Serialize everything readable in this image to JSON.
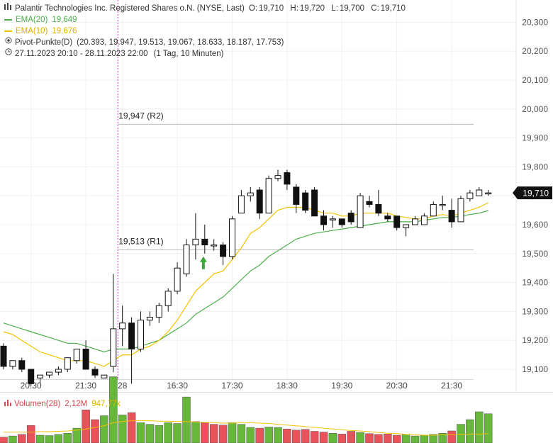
{
  "legend": {
    "instrument": "Palantir Technologies Inc. Registered Shares o.N. (NYSE, Last)",
    "ohlc": [
      {
        "label": "O:",
        "value": "19,710"
      },
      {
        "label": "H:",
        "value": "19,720"
      },
      {
        "label": "L:",
        "value": "19,700"
      },
      {
        "label": "C:",
        "value": "19,710"
      }
    ],
    "ema20_label": "EMA(20)",
    "ema20_value": "19,649",
    "ema10_label": "EMA(10)",
    "ema10_value": "19,676",
    "pivot_label": "Pivot-Punkte(D)",
    "pivot_values": "(20.393,  19.947,  19.513,  19.067,  18.633,  18.187,  17.753)",
    "range": "27.11.2023 20:10 - 28.11.2023 22:00",
    "interval": "(1 Tag, 10 Minuten)",
    "icons": {
      "chart": "chart-bars-icon",
      "pivot": "target-icon",
      "clock": "clock-icon"
    }
  },
  "volume_legend": {
    "label": "Volumen(28)",
    "value": "2,12M",
    "avg": "947,77k",
    "icon": "volume-bars-icon"
  },
  "colors": {
    "ema20": "#4cae4c",
    "ema10": "#f2c200",
    "up_vol": "#67b83a",
    "down_vol": "#e8525a",
    "price_tag": "#111111",
    "session_line": "#cc44cc",
    "arrow": "#3aa83a"
  },
  "chart_data": {
    "type": "candlestick",
    "y_ticks": [
      "19,100",
      "19,200",
      "19,300",
      "19,400",
      "19,500",
      "19,600",
      "19,700",
      "19,800",
      "19,900",
      "20,000",
      "20,100",
      "20,200",
      "20,300"
    ],
    "x_ticks": [
      {
        "label": "20:30",
        "index": 3
      },
      {
        "label": "21:30",
        "index": 9
      },
      {
        "label": "28",
        "index": 13
      },
      {
        "label": "16:30",
        "index": 19
      },
      {
        "label": "17:30",
        "index": 25
      },
      {
        "label": "18:30",
        "index": 31
      },
      {
        "label": "19:30",
        "index": 37
      },
      {
        "label": "20:30",
        "index": 43
      },
      {
        "label": "21:30",
        "index": 49
      }
    ],
    "session_break_index": 12.5,
    "current_price": "19,710",
    "current_value": 19.71,
    "pivots": [
      {
        "label": "19,947 (R2)",
        "value": 19.947
      },
      {
        "label": "19,513 (R1)",
        "value": 19.513
      }
    ],
    "arrow_index": 22,
    "candles": [
      {
        "o": 19.18,
        "h": 19.19,
        "l": 19.1,
        "c": 19.11
      },
      {
        "o": 19.11,
        "h": 19.13,
        "l": 19.1,
        "c": 19.13
      },
      {
        "o": 19.13,
        "h": 19.14,
        "l": 19.09,
        "c": 19.1
      },
      {
        "o": 19.1,
        "h": 19.1,
        "l": 19.04,
        "c": 19.05
      },
      {
        "o": 19.07,
        "h": 19.08,
        "l": 19.05,
        "c": 19.08
      },
      {
        "o": 19.08,
        "h": 19.09,
        "l": 19.07,
        "c": 19.09
      },
      {
        "o": 19.09,
        "h": 19.11,
        "l": 19.08,
        "c": 19.1
      },
      {
        "o": 19.1,
        "h": 19.14,
        "l": 19.09,
        "c": 19.14
      },
      {
        "o": 19.13,
        "h": 19.17,
        "l": 19.12,
        "c": 19.17
      },
      {
        "o": 19.17,
        "h": 19.2,
        "l": 19.1,
        "c": 19.1
      },
      {
        "o": 19.1,
        "h": 19.11,
        "l": 19.07,
        "c": 19.08
      },
      {
        "o": 19.07,
        "h": 19.08,
        "l": 19.07,
        "c": 19.08
      },
      {
        "o": 19.11,
        "h": 19.43,
        "l": 19.09,
        "c": 19.24
      },
      {
        "o": 19.24,
        "h": 19.32,
        "l": 19.18,
        "c": 19.26
      },
      {
        "o": 19.26,
        "h": 19.28,
        "l": 19.05,
        "c": 19.17
      },
      {
        "o": 19.17,
        "h": 19.3,
        "l": 19.16,
        "c": 19.27
      },
      {
        "o": 19.27,
        "h": 19.3,
        "l": 19.25,
        "c": 19.28
      },
      {
        "o": 19.28,
        "h": 19.33,
        "l": 19.26,
        "c": 19.32
      },
      {
        "o": 19.32,
        "h": 19.38,
        "l": 19.3,
        "c": 19.37
      },
      {
        "o": 19.37,
        "h": 19.47,
        "l": 19.36,
        "c": 19.45
      },
      {
        "o": 19.43,
        "h": 19.55,
        "l": 19.42,
        "c": 19.53
      },
      {
        "o": 19.53,
        "h": 19.64,
        "l": 19.48,
        "c": 19.55
      },
      {
        "o": 19.55,
        "h": 19.6,
        "l": 19.5,
        "c": 19.53
      },
      {
        "o": 19.53,
        "h": 19.55,
        "l": 19.51,
        "c": 19.53
      },
      {
        "o": 19.53,
        "h": 19.54,
        "l": 19.46,
        "c": 19.49
      },
      {
        "o": 19.49,
        "h": 19.63,
        "l": 19.48,
        "c": 19.62
      },
      {
        "o": 19.64,
        "h": 19.72,
        "l": 19.64,
        "c": 19.7
      },
      {
        "o": 19.7,
        "h": 19.73,
        "l": 19.68,
        "c": 19.71
      },
      {
        "o": 19.72,
        "h": 19.73,
        "l": 19.62,
        "c": 19.64
      },
      {
        "o": 19.64,
        "h": 19.77,
        "l": 19.64,
        "c": 19.76
      },
      {
        "o": 19.76,
        "h": 19.79,
        "l": 19.75,
        "c": 19.77
      },
      {
        "o": 19.78,
        "h": 19.79,
        "l": 19.72,
        "c": 19.74
      },
      {
        "o": 19.73,
        "h": 19.74,
        "l": 19.64,
        "c": 19.67
      },
      {
        "o": 19.71,
        "h": 19.72,
        "l": 19.64,
        "c": 19.65
      },
      {
        "o": 19.72,
        "h": 19.73,
        "l": 19.63,
        "c": 19.63
      },
      {
        "o": 19.63,
        "h": 19.65,
        "l": 19.58,
        "c": 19.6
      },
      {
        "o": 19.62,
        "h": 19.63,
        "l": 19.59,
        "c": 19.62
      },
      {
        "o": 19.62,
        "h": 19.62,
        "l": 19.59,
        "c": 19.6
      },
      {
        "o": 19.64,
        "h": 19.65,
        "l": 19.6,
        "c": 19.61
      },
      {
        "o": 19.59,
        "h": 19.71,
        "l": 19.59,
        "c": 19.7
      },
      {
        "o": 19.68,
        "h": 19.7,
        "l": 19.66,
        "c": 19.67
      },
      {
        "o": 19.67,
        "h": 19.72,
        "l": 19.63,
        "c": 19.64
      },
      {
        "o": 19.63,
        "h": 19.64,
        "l": 19.61,
        "c": 19.62
      },
      {
        "o": 19.63,
        "h": 19.63,
        "l": 19.58,
        "c": 19.59
      },
      {
        "o": 19.59,
        "h": 19.6,
        "l": 19.56,
        "c": 19.6
      },
      {
        "o": 19.6,
        "h": 19.63,
        "l": 19.6,
        "c": 19.62
      },
      {
        "o": 19.6,
        "h": 19.64,
        "l": 19.6,
        "c": 19.63
      },
      {
        "o": 19.63,
        "h": 19.68,
        "l": 19.63,
        "c": 19.67
      },
      {
        "o": 19.67,
        "h": 19.7,
        "l": 19.65,
        "c": 19.67
      },
      {
        "o": 19.65,
        "h": 19.69,
        "l": 19.59,
        "c": 19.61
      },
      {
        "o": 19.61,
        "h": 19.7,
        "l": 19.61,
        "c": 19.69
      },
      {
        "o": 19.69,
        "h": 19.72,
        "l": 19.68,
        "c": 19.71
      },
      {
        "o": 19.7,
        "h": 19.73,
        "l": 19.7,
        "c": 19.72
      },
      {
        "o": 19.71,
        "h": 19.72,
        "l": 19.7,
        "c": 19.71
      }
    ],
    "ema20": [
      19.26,
      19.25,
      19.24,
      19.23,
      19.22,
      19.21,
      19.2,
      19.19,
      19.19,
      19.18,
      19.17,
      19.16,
      19.17,
      19.17,
      19.17,
      19.18,
      19.19,
      19.2,
      19.22,
      19.24,
      19.26,
      19.29,
      19.31,
      19.33,
      19.35,
      19.38,
      19.41,
      19.44,
      19.46,
      19.49,
      19.51,
      19.53,
      19.55,
      19.56,
      19.57,
      19.575,
      19.58,
      19.585,
      19.59,
      19.595,
      19.6,
      19.605,
      19.61,
      19.61,
      19.61,
      19.61,
      19.615,
      19.62,
      19.625,
      19.625,
      19.63,
      19.635,
      19.64,
      19.649
    ],
    "ema10": [
      19.23,
      19.22,
      19.2,
      19.18,
      19.16,
      19.15,
      19.14,
      19.13,
      19.13,
      19.13,
      19.12,
      19.11,
      19.13,
      19.15,
      19.15,
      19.17,
      19.18,
      19.2,
      19.23,
      19.27,
      19.32,
      19.37,
      19.4,
      19.43,
      19.44,
      19.48,
      19.52,
      19.57,
      19.59,
      19.62,
      19.65,
      19.66,
      19.66,
      19.66,
      19.65,
      19.64,
      19.64,
      19.63,
      19.63,
      19.64,
      19.64,
      19.64,
      19.64,
      19.63,
      19.625,
      19.62,
      19.62,
      19.63,
      19.635,
      19.63,
      19.64,
      19.65,
      19.66,
      19.676
    ],
    "volume": [
      {
        "v": 0.15,
        "up": false
      },
      {
        "v": 0.18,
        "up": true
      },
      {
        "v": 0.22,
        "up": false
      },
      {
        "v": 0.45,
        "up": false
      },
      {
        "v": 0.2,
        "up": true
      },
      {
        "v": 0.19,
        "up": true
      },
      {
        "v": 0.22,
        "up": true
      },
      {
        "v": 0.25,
        "up": true
      },
      {
        "v": 0.38,
        "up": true
      },
      {
        "v": 0.85,
        "up": false
      },
      {
        "v": 0.6,
        "up": false
      },
      {
        "v": 0.7,
        "up": true
      },
      {
        "v": 1.7,
        "up": true
      },
      {
        "v": 0.72,
        "up": true
      },
      {
        "v": 0.78,
        "up": false
      },
      {
        "v": 0.52,
        "up": true
      },
      {
        "v": 0.48,
        "up": true
      },
      {
        "v": 0.45,
        "up": true
      },
      {
        "v": 0.52,
        "up": true
      },
      {
        "v": 0.5,
        "up": true
      },
      {
        "v": 1.18,
        "up": true
      },
      {
        "v": 0.55,
        "up": true
      },
      {
        "v": 0.52,
        "up": false
      },
      {
        "v": 0.48,
        "up": false
      },
      {
        "v": 0.46,
        "up": false
      },
      {
        "v": 0.52,
        "up": true
      },
      {
        "v": 0.48,
        "up": true
      },
      {
        "v": 0.4,
        "up": true
      },
      {
        "v": 0.38,
        "up": false
      },
      {
        "v": 0.41,
        "up": true
      },
      {
        "v": 0.4,
        "up": true
      },
      {
        "v": 0.36,
        "up": false
      },
      {
        "v": 0.33,
        "up": false
      },
      {
        "v": 0.35,
        "up": false
      },
      {
        "v": 0.3,
        "up": false
      },
      {
        "v": 0.28,
        "up": false
      },
      {
        "v": 0.25,
        "up": true
      },
      {
        "v": 0.23,
        "up": false
      },
      {
        "v": 0.3,
        "up": false
      },
      {
        "v": 0.27,
        "up": true
      },
      {
        "v": 0.24,
        "up": false
      },
      {
        "v": 0.22,
        "up": false
      },
      {
        "v": 0.23,
        "up": false
      },
      {
        "v": 0.2,
        "up": false
      },
      {
        "v": 0.22,
        "up": true
      },
      {
        "v": 0.18,
        "up": true
      },
      {
        "v": 0.2,
        "up": true
      },
      {
        "v": 0.22,
        "up": true
      },
      {
        "v": 0.25,
        "up": true
      },
      {
        "v": 0.31,
        "up": false
      },
      {
        "v": 0.48,
        "up": true
      },
      {
        "v": 0.6,
        "up": true
      },
      {
        "v": 0.8,
        "up": true
      },
      {
        "v": 0.75,
        "up": true
      }
    ],
    "volume_avg": [
      0.28,
      0.28,
      0.28,
      0.28,
      0.29,
      0.29,
      0.3,
      0.31,
      0.33,
      0.36,
      0.4,
      0.44,
      0.52,
      0.55,
      0.57,
      0.57,
      0.57,
      0.56,
      0.56,
      0.55,
      0.55,
      0.54,
      0.53,
      0.52,
      0.51,
      0.51,
      0.52,
      0.52,
      0.51,
      0.5,
      0.48,
      0.46,
      0.44,
      0.42,
      0.4,
      0.38,
      0.36,
      0.34,
      0.32,
      0.31,
      0.29,
      0.27,
      0.25,
      0.24,
      0.22,
      0.21,
      0.2,
      0.2,
      0.21,
      0.21,
      0.22,
      0.23,
      0.23,
      0.24
    ]
  }
}
